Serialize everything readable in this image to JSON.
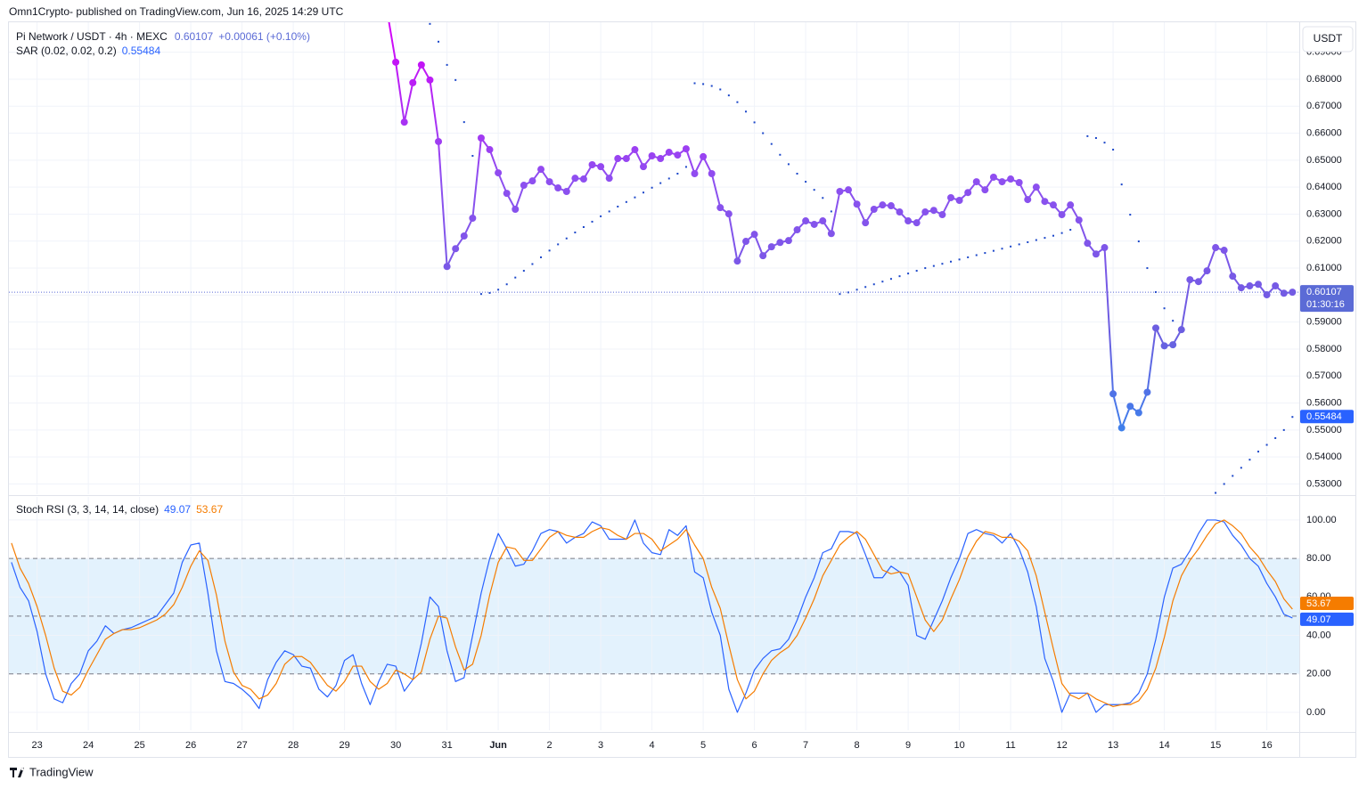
{
  "byline": "Omn1Crypto- published on TradingView.com, Jun 16, 2025 14:29 UTC",
  "footer": "TradingView",
  "chart_data": [
    {
      "type": "line",
      "title": "Pi Network / USDT · 4h · MEXC",
      "change": "+0.00061 (+0.10%)",
      "countdown": "01:30:16",
      "currency": "USDT",
      "grid": true,
      "ylim": [
        0.5262,
        0.7011
      ],
      "yticks": [
        {
          "value": 0.53,
          "label": "0.53000"
        },
        {
          "value": 0.54,
          "label": "0.54000"
        },
        {
          "value": 0.55,
          "label": "0.55000"
        },
        {
          "value": 0.56,
          "label": "0.56000"
        },
        {
          "value": 0.57,
          "label": "0.57000"
        },
        {
          "value": 0.58,
          "label": "0.58000"
        },
        {
          "value": 0.59,
          "label": "0.59000"
        },
        {
          "value": 0.6,
          "label": "0.60000"
        },
        {
          "value": 0.61,
          "label": "0.61000"
        },
        {
          "value": 0.62,
          "label": "0.62000"
        },
        {
          "value": 0.63,
          "label": "0.63000"
        },
        {
          "value": 0.64,
          "label": "0.64000"
        },
        {
          "value": 0.65,
          "label": "0.65000"
        },
        {
          "value": 0.66,
          "label": "0.66000"
        },
        {
          "value": 0.67,
          "label": "0.67000"
        },
        {
          "value": 0.68,
          "label": "0.68000"
        },
        {
          "value": 0.69,
          "label": "0.69000"
        }
      ],
      "xlim": [
        -0.3,
        150.8
      ],
      "xticks": [
        {
          "value": 3,
          "label": "23"
        },
        {
          "value": 9,
          "label": "24"
        },
        {
          "value": 15,
          "label": "25"
        },
        {
          "value": 21,
          "label": "26"
        },
        {
          "value": 27,
          "label": "27"
        },
        {
          "value": 33,
          "label": "28"
        },
        {
          "value": 39,
          "label": "29"
        },
        {
          "value": 45,
          "label": "30"
        },
        {
          "value": 51,
          "label": "31"
        },
        {
          "value": 57,
          "label": "Jun"
        },
        {
          "value": 63,
          "label": "2"
        },
        {
          "value": 69,
          "label": "3"
        },
        {
          "value": 75,
          "label": "4"
        },
        {
          "value": 81,
          "label": "5"
        },
        {
          "value": 87,
          "label": "6"
        },
        {
          "value": 93,
          "label": "7"
        },
        {
          "value": 99,
          "label": "8"
        },
        {
          "value": 105,
          "label": "9"
        },
        {
          "value": 111,
          "label": "10"
        },
        {
          "value": 117,
          "label": "11"
        },
        {
          "value": 123,
          "label": "12"
        },
        {
          "value": 129,
          "label": "13"
        },
        {
          "value": 135,
          "label": "14"
        },
        {
          "value": 141,
          "label": "15"
        },
        {
          "value": 147,
          "label": "16"
        }
      ],
      "series": [
        {
          "style": "line-markers",
          "colors": [
            "#d500f9",
            "#8e4ff0",
            "#6a5fe0",
            "#2196f3"
          ],
          "values": [
            null,
            null,
            null,
            null,
            null,
            null,
            null,
            null,
            null,
            null,
            null,
            null,
            null,
            null,
            null,
            null,
            null,
            null,
            null,
            null,
            null,
            null,
            null,
            null,
            null,
            null,
            null,
            null,
            null,
            null,
            null,
            null,
            null,
            null,
            null,
            null,
            null,
            null,
            null,
            null,
            null,
            null,
            null,
            null,
            0.705,
            0.6863,
            0.6641,
            0.6787,
            0.6853,
            0.6797,
            0.6569,
            0.6106,
            0.6172,
            0.6219,
            0.6285,
            0.6582,
            0.6539,
            0.6453,
            0.6377,
            0.6318,
            0.6407,
            0.6423,
            0.6466,
            0.642,
            0.6397,
            0.6384,
            0.6433,
            0.643,
            0.6483,
            0.6476,
            0.6433,
            0.6506,
            0.6506,
            0.6539,
            0.6476,
            0.6516,
            0.6506,
            0.6529,
            0.6519,
            0.6542,
            0.645,
            0.6513,
            0.645,
            0.6324,
            0.6301,
            0.6126,
            0.6199,
            0.6225,
            0.6146,
            0.6179,
            0.6195,
            0.6202,
            0.6242,
            0.6275,
            0.6262,
            0.6275,
            0.6228,
            0.6384,
            0.639,
            0.6337,
            0.6268,
            0.6318,
            0.6334,
            0.6331,
            0.6308,
            0.6275,
            0.6268,
            0.6308,
            0.6314,
            0.6298,
            0.6361,
            0.6351,
            0.638,
            0.642,
            0.639,
            0.6437,
            0.642,
            0.643,
            0.6417,
            0.6354,
            0.64,
            0.6347,
            0.6334,
            0.6298,
            0.6334,
            0.6278,
            0.6192,
            0.6152,
            0.6176,
            0.5634,
            0.5508,
            0.5588,
            0.5564,
            0.564,
            0.5878,
            0.5812,
            0.5816,
            0.5872,
            0.6057,
            0.605,
            0.609,
            0.6176,
            0.6166,
            0.607,
            0.6027,
            0.6034,
            0.604,
            0.6001,
            0.6034,
            0.6007,
            0.60107
          ]
        },
        {
          "name": "SAR (0.02, 0.02, 0.2)",
          "style": "points",
          "color": "#1c47c9",
          "values": [
            null,
            null,
            null,
            null,
            null,
            null,
            null,
            null,
            null,
            null,
            null,
            null,
            null,
            null,
            null,
            null,
            null,
            null,
            null,
            null,
            null,
            null,
            null,
            null,
            null,
            null,
            null,
            null,
            null,
            null,
            null,
            null,
            null,
            null,
            null,
            null,
            null,
            null,
            null,
            null,
            null,
            null,
            null,
            null,
            null,
            null,
            null,
            null,
            null,
            0.7005,
            0.6939,
            0.6853,
            0.6797,
            0.6641,
            0.6516,
            0.6004,
            0.6008,
            0.602,
            0.604,
            0.6065,
            0.609,
            0.6115,
            0.614,
            0.6165,
            0.6188,
            0.621,
            0.6232,
            0.6252,
            0.6272,
            0.6292,
            0.631,
            0.6328,
            0.6345,
            0.6362,
            0.638,
            0.6398,
            0.6415,
            0.6432,
            0.645,
            0.6475,
            0.6785,
            0.6782,
            0.6775,
            0.6762,
            0.674,
            0.6715,
            0.668,
            0.664,
            0.66,
            0.656,
            0.652,
            0.6485,
            0.645,
            0.642,
            0.639,
            0.636,
            0.631,
            0.6004,
            0.601,
            0.602,
            0.603,
            0.604,
            0.605,
            0.606,
            0.607,
            0.608,
            0.609,
            0.61,
            0.6108,
            0.6116,
            0.6124,
            0.6132,
            0.614,
            0.6148,
            0.6156,
            0.6164,
            0.6172,
            0.618,
            0.6188,
            0.6196,
            0.6204,
            0.6212,
            0.622,
            0.623,
            0.6242,
            null,
            0.6589,
            0.6582,
            0.6565,
            0.6539,
            0.641,
            0.6298,
            0.6199,
            0.61,
            0.6011,
            0.5951,
            0.5905,
            null,
            null,
            null,
            null,
            0.5267,
            0.53,
            0.533,
            0.536,
            0.539,
            0.542,
            0.5445,
            0.547,
            0.55,
            0.55484
          ]
        }
      ]
    },
    {
      "type": "line",
      "title": "Stoch RSI (3, 3, 14, 14, close)",
      "grid": true,
      "ylim": [
        -9.3,
        112
      ],
      "yticks": [
        {
          "value": 0,
          "label": "0.00"
        },
        {
          "value": 20,
          "label": "20.00"
        },
        {
          "value": 40,
          "label": "40.00"
        },
        {
          "value": 60,
          "label": "60.00"
        },
        {
          "value": 80,
          "label": "80.00"
        },
        {
          "value": 100,
          "label": "100.00"
        }
      ],
      "levels": [
        80,
        50,
        20
      ],
      "band_color": "#e3f2fd",
      "series": [
        {
          "style": "line",
          "color": "#2962ff",
          "values": [
            78,
            65,
            58,
            42,
            20,
            7,
            5,
            15,
            20,
            32,
            37,
            45,
            41,
            43,
            44,
            46,
            48,
            50,
            56,
            62,
            78,
            87,
            88,
            62,
            32,
            16,
            15,
            12,
            8,
            2,
            17,
            26,
            32,
            30,
            24,
            23,
            12,
            8,
            14,
            27,
            30,
            15,
            4,
            16,
            25,
            24,
            11,
            17,
            36,
            60,
            55,
            32,
            16,
            18,
            40,
            62,
            80,
            93,
            85,
            76,
            77,
            84,
            93,
            95,
            94,
            88,
            91,
            93,
            99,
            97,
            90,
            90,
            90,
            100,
            88,
            83,
            82,
            95,
            92,
            97,
            73,
            70,
            52,
            40,
            12,
            0,
            10,
            22,
            28,
            32,
            33,
            38,
            48,
            60,
            70,
            83,
            85,
            94,
            94,
            93,
            82,
            70,
            70,
            76,
            73,
            66,
            40,
            38,
            48,
            58,
            70,
            80,
            93,
            95,
            93,
            92,
            88,
            93,
            85,
            73,
            55,
            28,
            16,
            0,
            10,
            10,
            10,
            0,
            4,
            4,
            4,
            5,
            10,
            20,
            38,
            60,
            75,
            77,
            84,
            93,
            100,
            100,
            99,
            92,
            87,
            80,
            76,
            67,
            60,
            51,
            49.07
          ]
        },
        {
          "style": "line",
          "color": "#f57c00",
          "values": [
            88,
            75,
            67,
            55,
            40,
            23,
            11,
            9,
            13,
            22,
            30,
            38,
            41,
            43,
            43,
            44,
            46,
            48,
            51,
            56,
            65,
            76,
            84,
            79,
            61,
            37,
            21,
            14,
            12,
            7,
            9,
            15,
            25,
            29,
            29,
            26,
            20,
            14,
            11,
            16,
            24,
            24,
            16,
            12,
            15,
            22,
            20,
            17,
            21,
            38,
            50,
            49,
            34,
            22,
            25,
            40,
            61,
            78,
            86,
            85,
            79,
            79,
            85,
            91,
            94,
            92,
            91,
            91,
            94,
            96,
            95,
            92,
            90,
            93,
            93,
            90,
            84,
            87,
            90,
            95,
            87,
            80,
            65,
            54,
            35,
            17,
            7,
            11,
            20,
            27,
            31,
            34,
            40,
            49,
            59,
            71,
            79,
            87,
            91,
            94,
            90,
            82,
            74,
            72,
            73,
            72,
            60,
            48,
            42,
            48,
            59,
            69,
            81,
            89,
            94,
            93,
            91,
            91,
            89,
            84,
            71,
            52,
            33,
            15,
            9,
            7,
            10,
            7,
            5,
            3,
            4,
            4,
            6,
            12,
            23,
            39,
            58,
            71,
            79,
            85,
            92,
            98,
            100,
            97,
            93,
            86,
            81,
            74,
            68,
            59,
            53.67
          ]
        }
      ]
    }
  ]
}
